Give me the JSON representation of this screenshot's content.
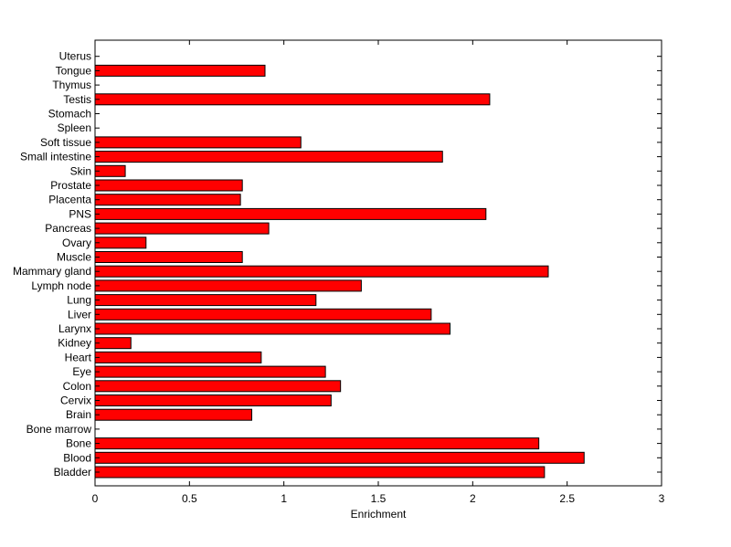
{
  "chart_data": {
    "type": "bar",
    "orientation": "horizontal",
    "title": "",
    "xlabel": "Enrichment",
    "ylabel": "",
    "xlim": [
      0,
      3
    ],
    "xticks": [
      0,
      0.5,
      1,
      1.5,
      2,
      2.5,
      3
    ],
    "xtick_labels": [
      "0",
      "0.5",
      "1",
      "1.5",
      "2",
      "2.5",
      "3"
    ],
    "grid": false,
    "bar_color": "#ff0000",
    "bar_edge_color": "#000000",
    "categories": [
      "Bladder",
      "Blood",
      "Bone",
      "Bone marrow",
      "Brain",
      "Cervix",
      "Colon",
      "Eye",
      "Heart",
      "Kidney",
      "Larynx",
      "Liver",
      "Lung",
      "Lymph node",
      "Mammary gland",
      "Muscle",
      "Ovary",
      "Pancreas",
      "PNS",
      "Placenta",
      "Prostate",
      "Skin",
      "Small intestine",
      "Soft tissue",
      "Spleen",
      "Stomach",
      "Testis",
      "Thymus",
      "Tongue",
      "Uterus"
    ],
    "values": [
      2.38,
      2.59,
      2.35,
      0,
      0.83,
      1.25,
      1.3,
      1.22,
      0.88,
      0.19,
      1.88,
      1.78,
      1.17,
      1.41,
      2.4,
      0.78,
      0.27,
      0.92,
      2.07,
      0.77,
      0.78,
      0.16,
      1.84,
      1.09,
      0,
      0,
      2.09,
      0,
      0.9,
      0
    ]
  }
}
